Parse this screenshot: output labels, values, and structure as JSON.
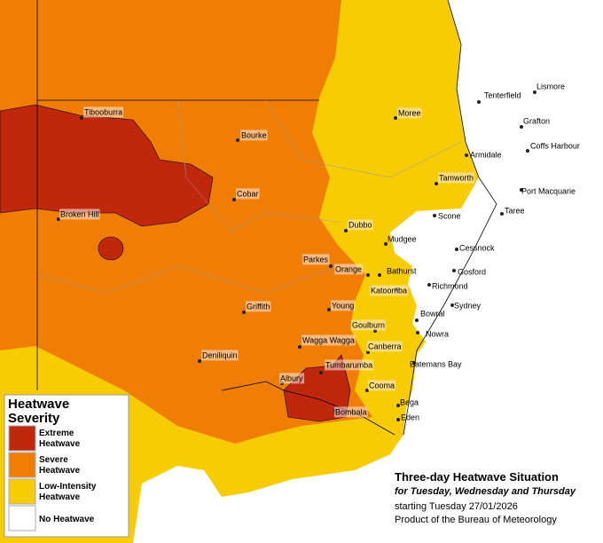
{
  "map": {
    "title": "Three-day Heatwave Situation",
    "subtitle": "for Tuesday, Wednesday and Thursday",
    "date_line": "starting Tuesday 27/01/2026",
    "credit": "Product of the Bureau of Meteorology",
    "legend": {
      "title": [
        "Heatwave",
        "Severity"
      ],
      "items": [
        {
          "lines": [
            "Extreme",
            "Heatwave"
          ],
          "color": "#c0280d"
        },
        {
          "lines": [
            "Severe",
            "Heatwave"
          ],
          "color": "#f07d05"
        },
        {
          "lines": [
            "Low-Intensity",
            "Heatwave"
          ],
          "color": "#f8cc05"
        },
        {
          "lines": [
            "No Heatwave"
          ],
          "color": "#ffffff"
        }
      ]
    },
    "towns": [
      "Tibooburra",
      "Bourke",
      "Cobar",
      "Broken Hill",
      "Moree",
      "Tamworth",
      "Dubbo",
      "Mudgee",
      "Parkes",
      "Orange",
      "Bathurst",
      "Katoomba",
      "Griffith",
      "Young",
      "Goulburn",
      "Wagga Wagga",
      "Canberra",
      "Deniliquin",
      "Tumbarumba",
      "Albury",
      "Cooma",
      "Bombala",
      "Bega",
      "Eden",
      "Batemans Bay",
      "Nowra",
      "Bowral",
      "Sydney",
      "Richmond",
      "Gosford",
      "Cessnock",
      "Scone",
      "Taree",
      "Port Macquarie",
      "Armidale",
      "Coffs Harbour",
      "Grafton",
      "Tenterfield",
      "Lismore"
    ]
  }
}
